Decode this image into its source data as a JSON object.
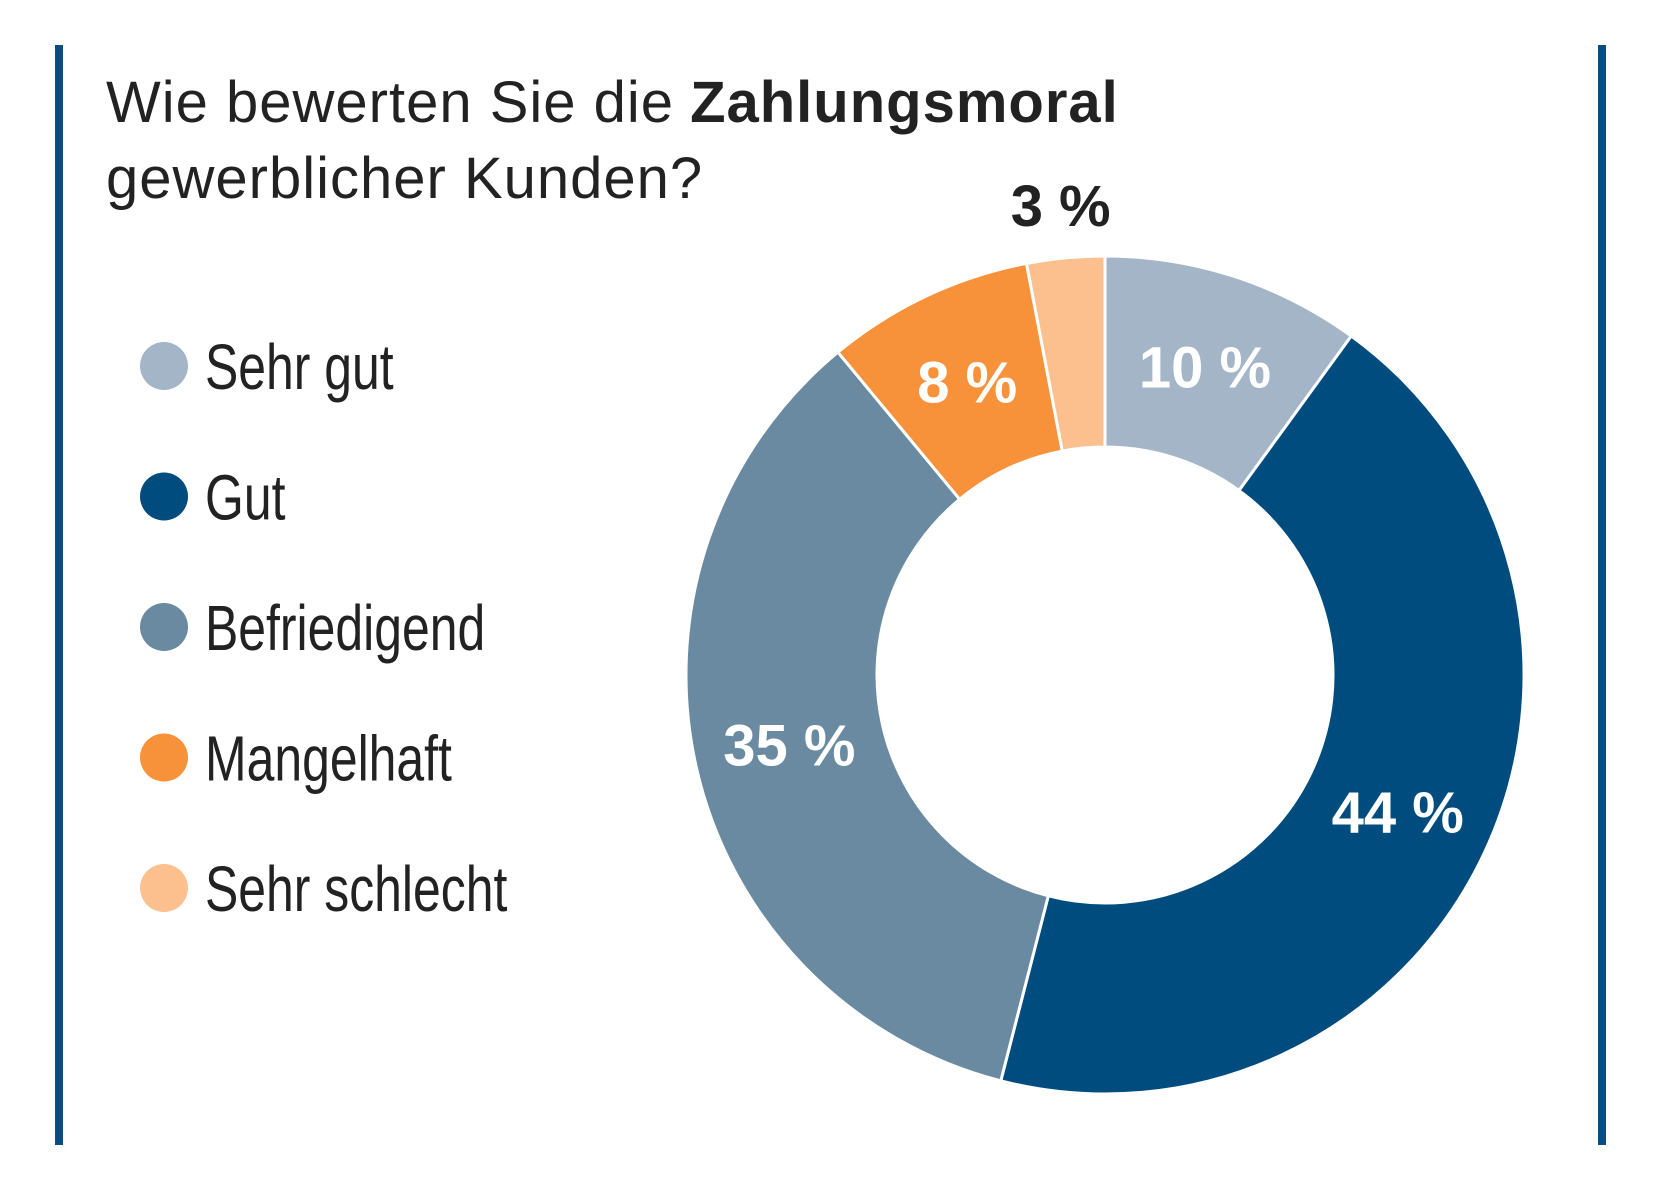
{
  "chart_data": {
    "type": "donut",
    "title": [
      "Wie bewerten Sie die",
      "Zahlungsmoral",
      "gewerblicher Kunden?"
    ],
    "categories": [
      "Sehr gut",
      "Gut",
      "Befriedigend",
      "Mangelhaft",
      "Sehr schlecht"
    ],
    "values": [
      10,
      44,
      35,
      8,
      3
    ],
    "value_labels": [
      "10 %",
      "44 %",
      "35 %",
      "8 %",
      "3 %"
    ],
    "colors": [
      "#a3b5c7",
      "#004c7e",
      "#6a8aa2",
      "#f7923a",
      "#fcc08e"
    ],
    "legend": "left"
  }
}
